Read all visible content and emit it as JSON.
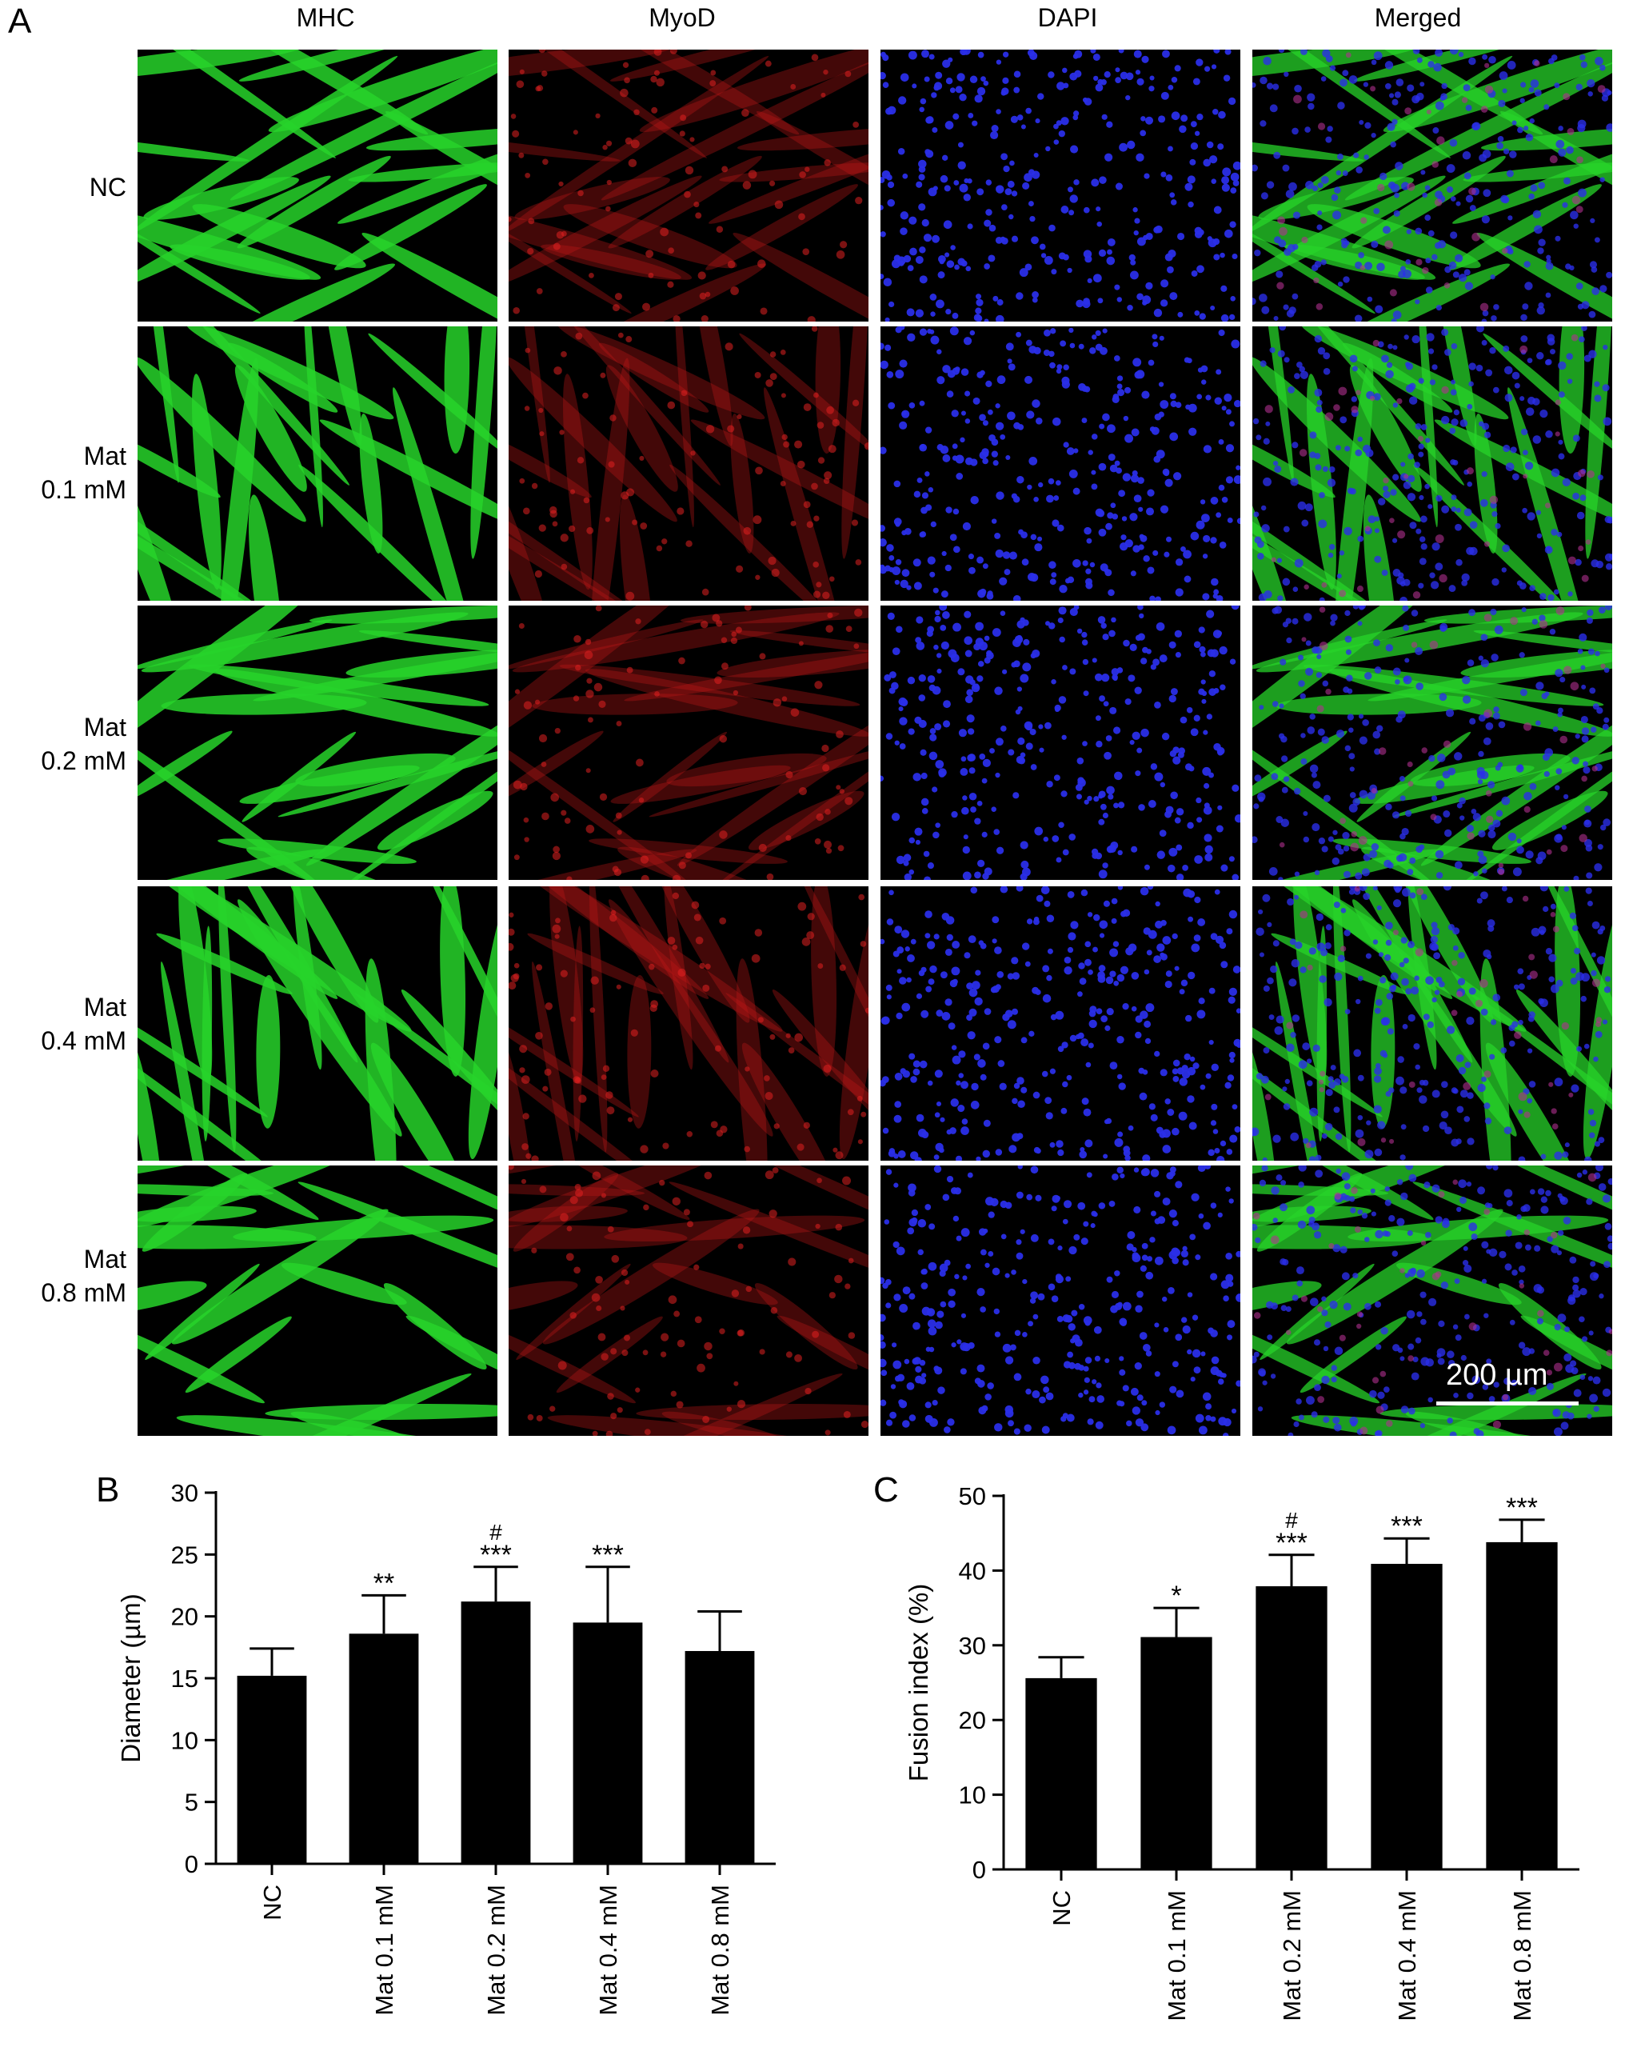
{
  "panels": {
    "a": "A",
    "b": "B",
    "c": "C"
  },
  "micrograph": {
    "columns": [
      {
        "label": "MHC",
        "stain": "green",
        "color": "#27d32a"
      },
      {
        "label": "MyoD",
        "stain": "red",
        "color": "#c11616"
      },
      {
        "label": "DAPI",
        "stain": "blue",
        "color": "#2a2ee8"
      },
      {
        "label": "Merged",
        "stain": "merged",
        "color": "#27d32a"
      }
    ],
    "rows": [
      {
        "line1": "NC",
        "line2": ""
      },
      {
        "line1": "Mat",
        "line2": "0.1 mM"
      },
      {
        "line1": "Mat",
        "line2": "0.2 mM"
      },
      {
        "line1": "Mat",
        "line2": "0.4 mM"
      },
      {
        "line1": "Mat",
        "line2": "0.8 mM"
      }
    ],
    "scale_bar": "200 µm"
  },
  "chart_data": [
    {
      "type": "bar",
      "panel": "B",
      "categories": [
        "NC",
        "Mat 0.1 mM",
        "Mat 0.2 mM",
        "Mat 0.4 mM",
        "Mat 0.8 mM"
      ],
      "values": [
        15.2,
        18.6,
        21.2,
        19.5,
        17.2
      ],
      "errors": [
        2.2,
        3.1,
        2.8,
        4.5,
        3.2
      ],
      "annotations": [
        "",
        "**",
        "***",
        "***",
        ""
      ],
      "annotations2": [
        "",
        "",
        "#",
        "",
        ""
      ],
      "ylabel": "Diameter (µm)",
      "ylim": [
        0,
        30
      ],
      "yticks": [
        0,
        5,
        10,
        15,
        20,
        25,
        30
      ],
      "bar_color": "#000000"
    },
    {
      "type": "bar",
      "panel": "C",
      "categories": [
        "NC",
        "Mat 0.1 mM",
        "Mat 0.2 mM",
        "Mat 0.4 mM",
        "Mat 0.8 mM"
      ],
      "values": [
        25.6,
        31.1,
        37.9,
        40.9,
        43.8
      ],
      "errors": [
        2.8,
        3.9,
        4.2,
        3.4,
        3.0
      ],
      "annotations": [
        "",
        "*",
        "***",
        "***",
        "***"
      ],
      "annotations2": [
        "",
        "",
        "#",
        "",
        ""
      ],
      "ylabel": "Fusion index (%)",
      "ylim": [
        0,
        50
      ],
      "yticks": [
        0,
        10,
        20,
        30,
        40,
        50
      ],
      "bar_color": "#000000"
    }
  ]
}
